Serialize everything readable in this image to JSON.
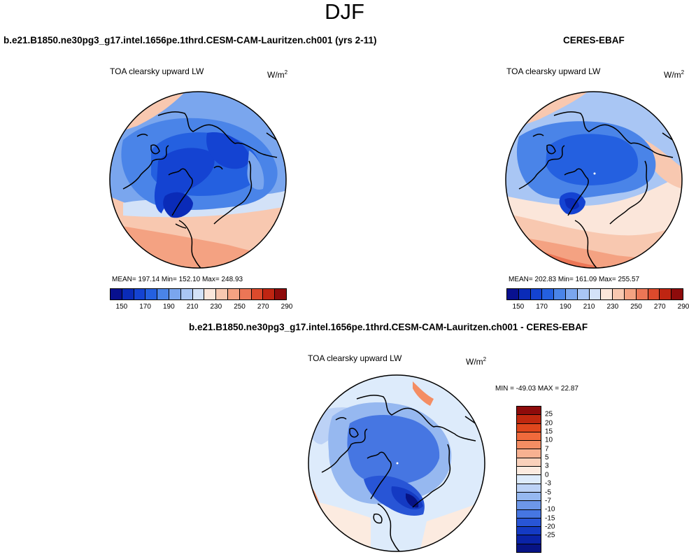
{
  "page_title": "DJF",
  "panels": {
    "model": {
      "title": "b.e21.B1850.ne30pg3_g17.intel.1656pe.1thrd.CESM-CAM-Lauritzen.ch001 (yrs 2-11)",
      "variable": "TOA clearsky upward LW",
      "units": "W/m",
      "units_sup": "2",
      "stats": "MEAN= 197.14  Min= 152.10  Max= 248.93"
    },
    "obs": {
      "title": "CERES-EBAF",
      "variable": "TOA clearsky upward LW",
      "units": "W/m",
      "units_sup": "2",
      "stats": "MEAN= 202.83  Min= 161.09  Max= 255.57"
    },
    "diff": {
      "title": "b.e21.B1850.ne30pg3_g17.intel.1656pe.1thrd.CESM-CAM-Lauritzen.ch001 - CERES-EBAF",
      "variable": "TOA clearsky upward LW",
      "units": "W/m",
      "units_sup": "2",
      "stats": "MIN = -49.03 MAX =  22.87"
    }
  },
  "colorbar_main": {
    "colors": [
      "#08108f",
      "#0a2bb8",
      "#1443d2",
      "#2460e0",
      "#4a84e8",
      "#7aa6ee",
      "#a9c6f4",
      "#d3e2f8",
      "#fbe6da",
      "#f8c8b0",
      "#f4a282",
      "#ec7656",
      "#dc4a2c",
      "#bf2512",
      "#8e0b0b"
    ],
    "labels": [
      "150",
      "170",
      "190",
      "210",
      "230",
      "250",
      "270",
      "290"
    ]
  },
  "colorbar_diff": {
    "colors": [
      "#8e0b0b",
      "#c0280f",
      "#e0471d",
      "#f06a3c",
      "#f48d63",
      "#f7b191",
      "#fad1bb",
      "#fcebe0",
      "#ddebfb",
      "#bcd2f6",
      "#96b8f0",
      "#6d97e9",
      "#4676e2",
      "#2855d6",
      "#143ac3",
      "#0a23a7",
      "#071385"
    ],
    "labels": [
      "25",
      "20",
      "15",
      "10",
      "7",
      "5",
      "3",
      "0",
      "-3",
      "-5",
      "-7",
      "-10",
      "-15",
      "-20",
      "-25"
    ]
  }
}
